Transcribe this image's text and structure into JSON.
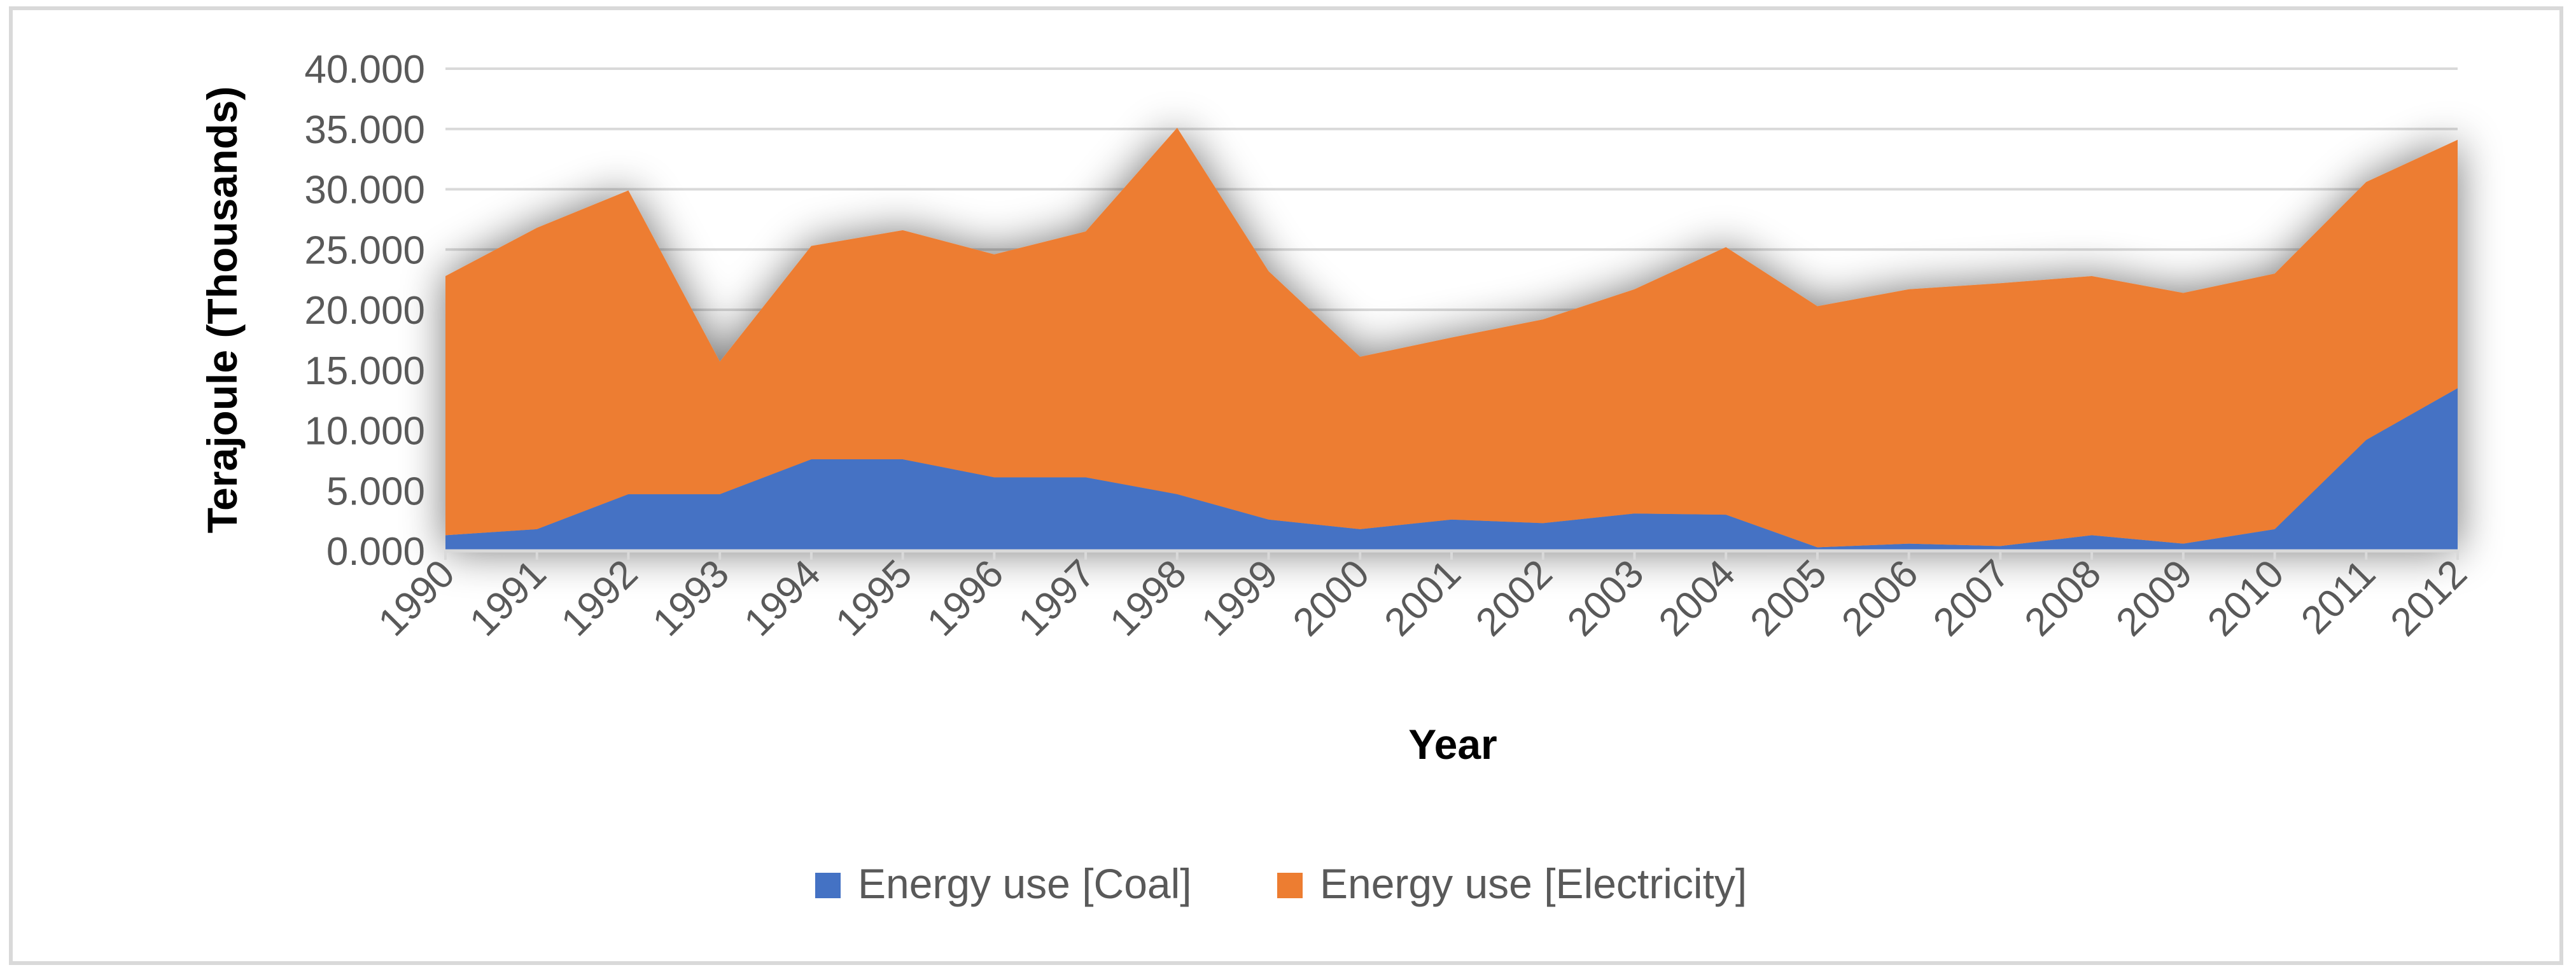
{
  "chart_data": {
    "type": "area",
    "stacked": true,
    "title": "",
    "xlabel": "Year",
    "ylabel": "Terajoule  (Thousands)",
    "ylim": [
      0,
      40000
    ],
    "y_tick_values": [
      0,
      5000,
      10000,
      15000,
      20000,
      25000,
      30000,
      35000,
      40000
    ],
    "y_tick_labels": [
      "0.000",
      "5.000",
      "10.000",
      "15.000",
      "20.000",
      "25.000",
      "30.000",
      "35.000",
      "40.000"
    ],
    "grid": true,
    "legend_position": "bottom",
    "categories": [
      "1990",
      "1991",
      "1992",
      "1993",
      "1994",
      "1995",
      "1996",
      "1997",
      "1998",
      "1999",
      "2000",
      "2001",
      "2002",
      "2003",
      "2004",
      "2005",
      "2006",
      "2007",
      "2008",
      "2009",
      "2010",
      "2011",
      "2012"
    ],
    "series": [
      {
        "name": "Energy use [Coal]",
        "color": "#4472c4",
        "values": [
          1300,
          1800,
          4700,
          4700,
          7600,
          7600,
          6100,
          6100,
          4700,
          2600,
          1800,
          2600,
          2300,
          3100,
          3000,
          300,
          600,
          400,
          1300,
          600,
          1800,
          9200,
          13500
        ]
      },
      {
        "name": "Energy use [Electricity]",
        "color": "#ed7d31",
        "values": [
          21500,
          25000,
          25200,
          11000,
          17700,
          19000,
          18500,
          20400,
          30400,
          20600,
          14300,
          15100,
          16900,
          18600,
          22200,
          20000,
          21100,
          21800,
          21500,
          20800,
          21200,
          21400,
          20600
        ]
      }
    ]
  }
}
